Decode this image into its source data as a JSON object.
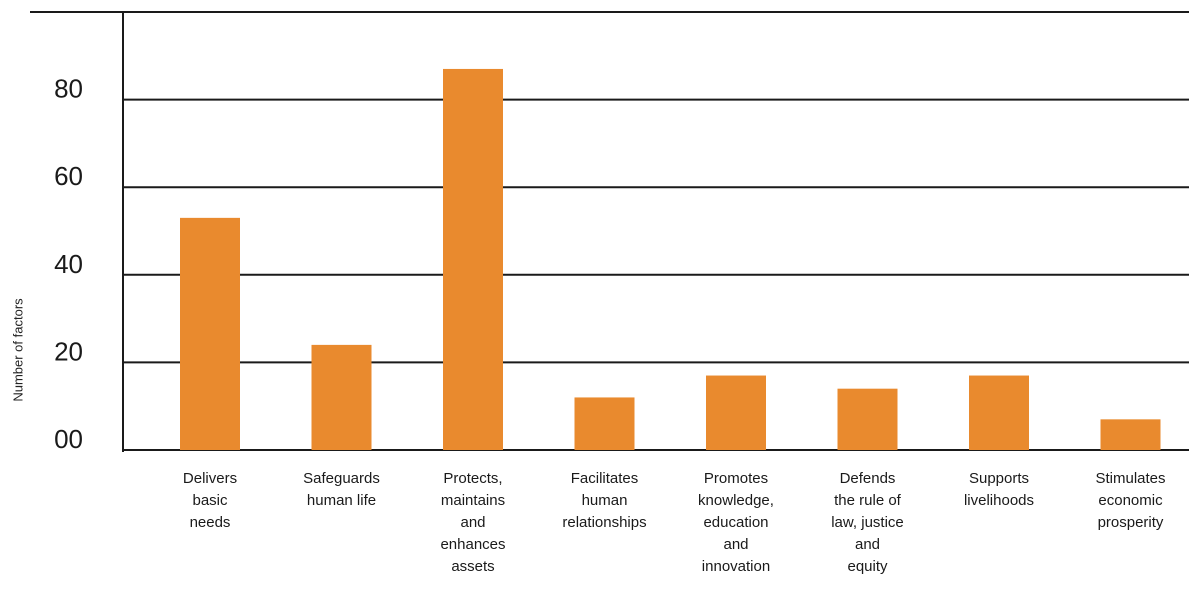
{
  "chart_data": {
    "type": "bar",
    "title": "",
    "xlabel": "",
    "ylabel": "Number of factors",
    "categories": [
      [
        "Delivers",
        "basic",
        "needs"
      ],
      [
        "Safeguards",
        "human life"
      ],
      [
        "Protects,",
        "maintains",
        "and",
        "enhances",
        "assets"
      ],
      [
        "Facilitates",
        "human",
        "relationships"
      ],
      [
        "Promotes",
        "knowledge,",
        "education",
        "and",
        "innovation"
      ],
      [
        "Defends",
        "the rule of",
        "law, justice",
        "and",
        "equity"
      ],
      [
        "Supports",
        "livelihoods"
      ],
      [
        "Stimulates",
        "economic",
        "prosperity"
      ]
    ],
    "values": [
      53,
      24,
      87,
      12,
      17,
      14,
      17,
      7
    ],
    "yticks": [
      {
        "value": 0,
        "label": "00"
      },
      {
        "value": 20,
        "label": "20"
      },
      {
        "value": 40,
        "label": "40"
      },
      {
        "value": 60,
        "label": "60"
      },
      {
        "value": 80,
        "label": "80"
      }
    ],
    "ylim": [
      0,
      100
    ],
    "grid": true,
    "bar_color": "#E98A2E",
    "grid_color": "#1a1a1a"
  }
}
